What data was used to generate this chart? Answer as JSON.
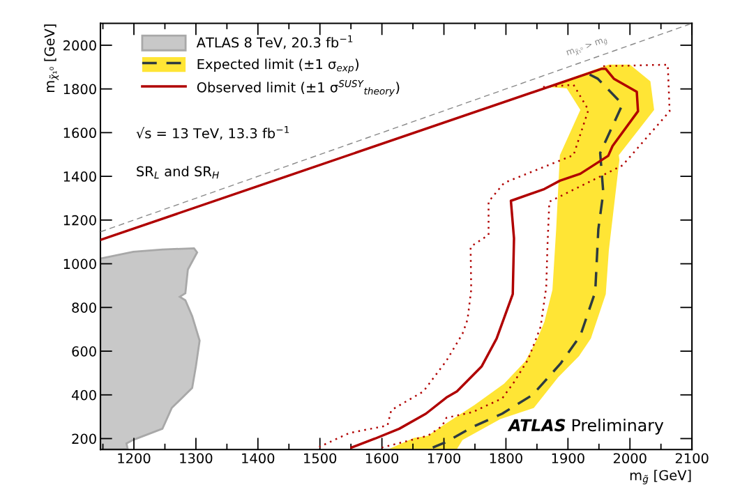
{
  "chart_data": {
    "type": "line",
    "xlabel": "m$_{g̃}$ [GeV]",
    "ylabel": "m$_{χ̃₁⁰}$ [GeV]",
    "xlim": [
      1146,
      2100
    ],
    "ylim": [
      150,
      2100
    ],
    "xticks": [
      1200,
      1300,
      1400,
      1500,
      1600,
      1700,
      1800,
      1900,
      2000,
      2100
    ],
    "yticks": [
      200,
      400,
      600,
      800,
      1000,
      1200,
      1400,
      1600,
      1800,
      2000
    ],
    "grid": false,
    "legend": "top left",
    "marker": "none",
    "annotations": [
      "√s = 13 TeV, 13.3 fb$^{−1}$",
      "SR$_{L}$ and SR$_{H}$",
      "ATLAS Preliminary",
      "m$_{χ̃₁⁰}$ > m$_{g̃}$"
    ],
    "series": [
      {
        "type": "area",
        "name": "ATLAS 8 TeV, 20.3 fb$^{−1}$",
        "color": "#c8c8c8",
        "x": [
          1146,
          1199,
          1246,
          1297,
          1302,
          1287,
          1283,
          1274,
          1283,
          1294,
          1306,
          1300,
          1294,
          1261,
          1246,
          1199,
          1188,
          1190,
          1146
        ],
        "values": [
          1024,
          1055,
          1065,
          1071,
          1052,
          973,
          865,
          849,
          833,
          760,
          648,
          531,
          432,
          340,
          245,
          194,
          178,
          152,
          152
        ]
      },
      {
        "type": "area",
        "name": "Expected limit (±1 σ$_{exp}$)",
        "color": "#ffe535",
        "x": [
          1865,
          1966,
          2000,
          2033,
          2039,
          1982,
          1983,
          1966,
          1961,
          1937,
          1918,
          1884,
          1845,
          1791,
          1730,
          1721,
          1611,
          1652,
          1674,
          1697,
          1749,
          1797,
          1831,
          1851,
          1862,
          1875,
          1881,
          1887,
          1920,
          1898
        ],
        "values": [
          1809,
          1911,
          1911,
          1835,
          1704,
          1497,
          1475,
          1062,
          861,
          658,
          578,
          480,
          340,
          289,
          194,
          152,
          152,
          203,
          213,
          257,
          353,
          451,
          553,
          658,
          734,
          881,
          1157,
          1497,
          1704,
          1803
        ]
      },
      {
        "color": "#2d3a40",
        "line_style": "dashed",
        "x": [
          1935,
          1948,
          1988,
          1952,
          1957,
          1949,
          1944,
          1920,
          1888,
          1843,
          1794,
          1749,
          1701,
          1682
        ],
        "values": [
          1866,
          1847,
          1730,
          1507,
          1326,
          1157,
          871,
          671,
          543,
          400,
          314,
          257,
          181,
          159
        ]
      },
      {
        "color": "#b00000",
        "line_style": "dotted",
        "x": [
          1957,
          2061,
          2064,
          1988,
          1870,
          1867,
          1865,
          1856,
          1836,
          1813,
          1794,
          1746,
          1704,
          1697,
          1674,
          1600
        ],
        "values": [
          1904,
          1911,
          1698,
          1450,
          1284,
          1084,
          893,
          712,
          563,
          458,
          384,
          321,
          295,
          257,
          213,
          159
        ]
      },
      {
        "color": "#b00000",
        "line_style": "dotted",
        "x": [
          1860,
          1909,
          1933,
          1909,
          1797,
          1772,
          1772,
          1743,
          1744,
          1738,
          1730,
          1704,
          1667,
          1615,
          1609,
          1547,
          1499
        ],
        "values": [
          1809,
          1819,
          1704,
          1497,
          1370,
          1284,
          1132,
          1078,
          881,
          744,
          680,
          556,
          416,
          330,
          260,
          225,
          162
        ]
      },
      {
        "name": "Observed limit (±1 σ$^{SUSY}$$_{theory}$)",
        "color": "#b00000",
        "line_style": "solid",
        "x": [
          1146,
          1954,
          1961,
          1974,
          2011,
          2013,
          1972,
          1965,
          1920,
          1887,
          1862,
          1808,
          1813,
          1811,
          1785,
          1761,
          1721,
          1704,
          1671,
          1628,
          1589,
          1551
        ],
        "values": [
          1109,
          1892,
          1892,
          1847,
          1787,
          1698,
          1539,
          1494,
          1412,
          1380,
          1342,
          1288,
          1116,
          861,
          658,
          531,
          416,
          388,
          314,
          245,
          200,
          159
        ]
      },
      {
        "color": "#888888",
        "line_style": "dashed",
        "x": [
          1146,
          2100
        ],
        "values": [
          1146,
          2100
        ]
      }
    ]
  }
}
